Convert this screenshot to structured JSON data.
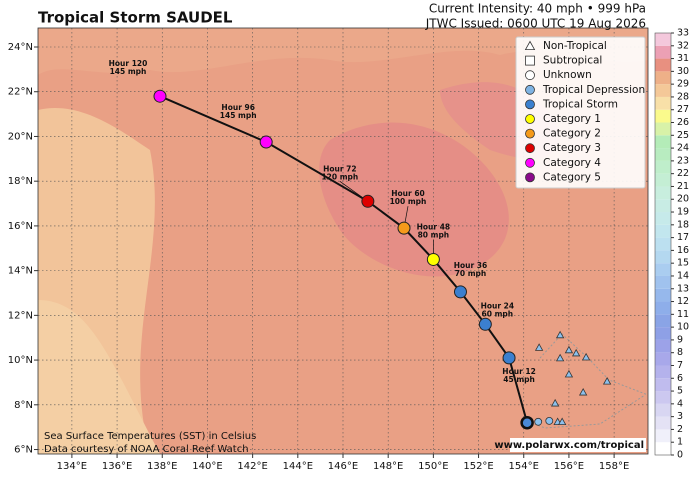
{
  "chart_data": {
    "type": "track",
    "title": "Tropical Storm SAUDEL",
    "intensity": "Current Intensity: 40 mph • 999 hPa",
    "issued": "JTWC Issued: 0600 UTC 19 Aug 2026",
    "xlim": [
      132.5,
      159.5
    ],
    "ylim": [
      5.8,
      24.85
    ],
    "xticks": [
      {
        "value": 134,
        "label": "134°E"
      },
      {
        "value": 136,
        "label": "136°E"
      },
      {
        "value": 138,
        "label": "138°E"
      },
      {
        "value": 140,
        "label": "140°E"
      },
      {
        "value": 142,
        "label": "142°E"
      },
      {
        "value": 144,
        "label": "144°E"
      },
      {
        "value": 146,
        "label": "146°E"
      },
      {
        "value": 148,
        "label": "148°E"
      },
      {
        "value": 150,
        "label": "150°E"
      },
      {
        "value": 152,
        "label": "152°E"
      },
      {
        "value": 154,
        "label": "154°E"
      },
      {
        "value": 156,
        "label": "156°E"
      },
      {
        "value": 158,
        "label": "158°E"
      }
    ],
    "yticks": [
      {
        "value": 6,
        "label": "6°N"
      },
      {
        "value": 8,
        "label": "8°N"
      },
      {
        "value": 10,
        "label": "10°N"
      },
      {
        "value": 12,
        "label": "12°N"
      },
      {
        "value": 14,
        "label": "14°N"
      },
      {
        "value": 16,
        "label": "16°N"
      },
      {
        "value": 18,
        "label": "18°N"
      },
      {
        "value": 20,
        "label": "20°N"
      },
      {
        "value": 22,
        "label": "22°N"
      },
      {
        "value": 24,
        "label": "24°N"
      }
    ],
    "grid": true,
    "legend": [
      {
        "label": "Non-Tropical",
        "shape": "triangle",
        "color": "none"
      },
      {
        "label": "Subtropical",
        "shape": "square",
        "color": "none"
      },
      {
        "label": "Unknown",
        "shape": "circle",
        "color": "none"
      },
      {
        "label": "Tropical Depression",
        "shape": "circle",
        "color": "#7fb3e3"
      },
      {
        "label": "Tropical Storm",
        "shape": "circle",
        "color": "#3b7fcf"
      },
      {
        "label": "Category 1",
        "shape": "circle",
        "color": "#ffff00"
      },
      {
        "label": "Category 2",
        "shape": "circle",
        "color": "#f59a1a"
      },
      {
        "label": "Category 3",
        "shape": "circle",
        "color": "#dd0000"
      },
      {
        "label": "Category 4",
        "shape": "circle",
        "color": "#ff00ff"
      },
      {
        "label": "Category 5",
        "shape": "circle",
        "color": "#8b0a8b"
      }
    ],
    "current": {
      "lon": 154.15,
      "lat": 7.2,
      "color": "#4a8ad8"
    },
    "forecast": [
      {
        "label": "Hour 12",
        "wind": "45 mph",
        "lon": 153.35,
        "lat": 10.1,
        "color": "#3b7fcf"
      },
      {
        "label": "Hour 24",
        "wind": "60 mph",
        "lon": 152.3,
        "lat": 11.6,
        "color": "#3b7fcf"
      },
      {
        "label": "Hour 36",
        "wind": "70 mph",
        "lon": 151.2,
        "lat": 13.05,
        "color": "#3b7fcf"
      },
      {
        "label": "Hour 48",
        "wind": "80 mph",
        "lon": 150.0,
        "lat": 14.5,
        "color": "#ffff00"
      },
      {
        "label": "Hour 60",
        "wind": "100 mph",
        "lon": 148.7,
        "lat": 15.9,
        "color": "#f59a1a"
      },
      {
        "label": "Hour 72",
        "wind": "120 mph",
        "lon": 147.1,
        "lat": 17.1,
        "color": "#dd0000"
      },
      {
        "label": "Hour 96",
        "wind": "145 mph",
        "lon": 142.6,
        "lat": 19.75,
        "color": "#ff00ff"
      },
      {
        "label": "Hour 120",
        "wind": "145 mph",
        "lon": 137.9,
        "lat": 21.8,
        "color": "#ff00ff"
      }
    ],
    "past": [
      {
        "lon": 154.2,
        "lat": 7.17,
        "shape": "circle"
      },
      {
        "lon": 154.64,
        "lat": 7.24,
        "shape": "circle"
      },
      {
        "lon": 155.13,
        "lat": 7.28,
        "shape": "circle"
      },
      {
        "lon": 155.5,
        "lat": 7.24,
        "shape": "triangle"
      },
      {
        "lon": 155.7,
        "lat": 7.24,
        "shape": "triangle"
      },
      {
        "lon": 155.39,
        "lat": 8.07,
        "shape": "triangle"
      },
      {
        "lon": 156.63,
        "lat": 8.56,
        "shape": "triangle"
      },
      {
        "lon": 157.69,
        "lat": 9.05,
        "shape": "triangle"
      },
      {
        "lon": 156.0,
        "lat": 9.37,
        "shape": "triangle"
      },
      {
        "lon": 155.61,
        "lat": 10.09,
        "shape": "triangle"
      },
      {
        "lon": 156.76,
        "lat": 10.13,
        "shape": "triangle"
      },
      {
        "lon": 156.32,
        "lat": 10.31,
        "shape": "triangle"
      },
      {
        "lon": 156.0,
        "lat": 10.45,
        "shape": "triangle"
      },
      {
        "lon": 154.68,
        "lat": 10.56,
        "shape": "triangle"
      },
      {
        "lon": 155.61,
        "lat": 11.12,
        "shape": "triangle"
      }
    ],
    "colorbar": {
      "ticks": [
        0,
        1,
        2,
        3,
        4,
        5,
        6,
        7,
        8,
        9,
        10,
        11,
        12,
        13,
        14,
        15,
        16,
        17,
        18,
        19,
        20,
        21,
        22,
        23,
        24,
        25,
        26,
        27,
        28,
        29,
        30,
        31,
        32,
        33
      ],
      "colors": [
        "#ffffff",
        "#f0f0fa",
        "#e4e2f5",
        "#d8d6f2",
        "#ccc8f0",
        "#c0bcee",
        "#b4b2ec",
        "#a8a8ea",
        "#9ca2e8",
        "#8ea0e6",
        "#8aa4e6",
        "#8eaeea",
        "#96b8ec",
        "#a0c2ee",
        "#aacdf0",
        "#b4d8f0",
        "#bce0f0",
        "#c2e6ee",
        "#c6eaea",
        "#c8ece4",
        "#c8eede",
        "#c4eed4",
        "#bfeecb",
        "#b8ecc0",
        "#b4ecb8",
        "#d8f2a8",
        "#fafa8c",
        "#f8e0a8",
        "#f4c898",
        "#eeb088",
        "#e89080",
        "#eca0b4",
        "#f4c8dc"
      ]
    },
    "note1": "Sea Surface Temperatures (SST) in Celsius",
    "note2": "Data courtesy of NOAA Coral Reef Watch",
    "website": "www.polarwx.com/tropical"
  }
}
